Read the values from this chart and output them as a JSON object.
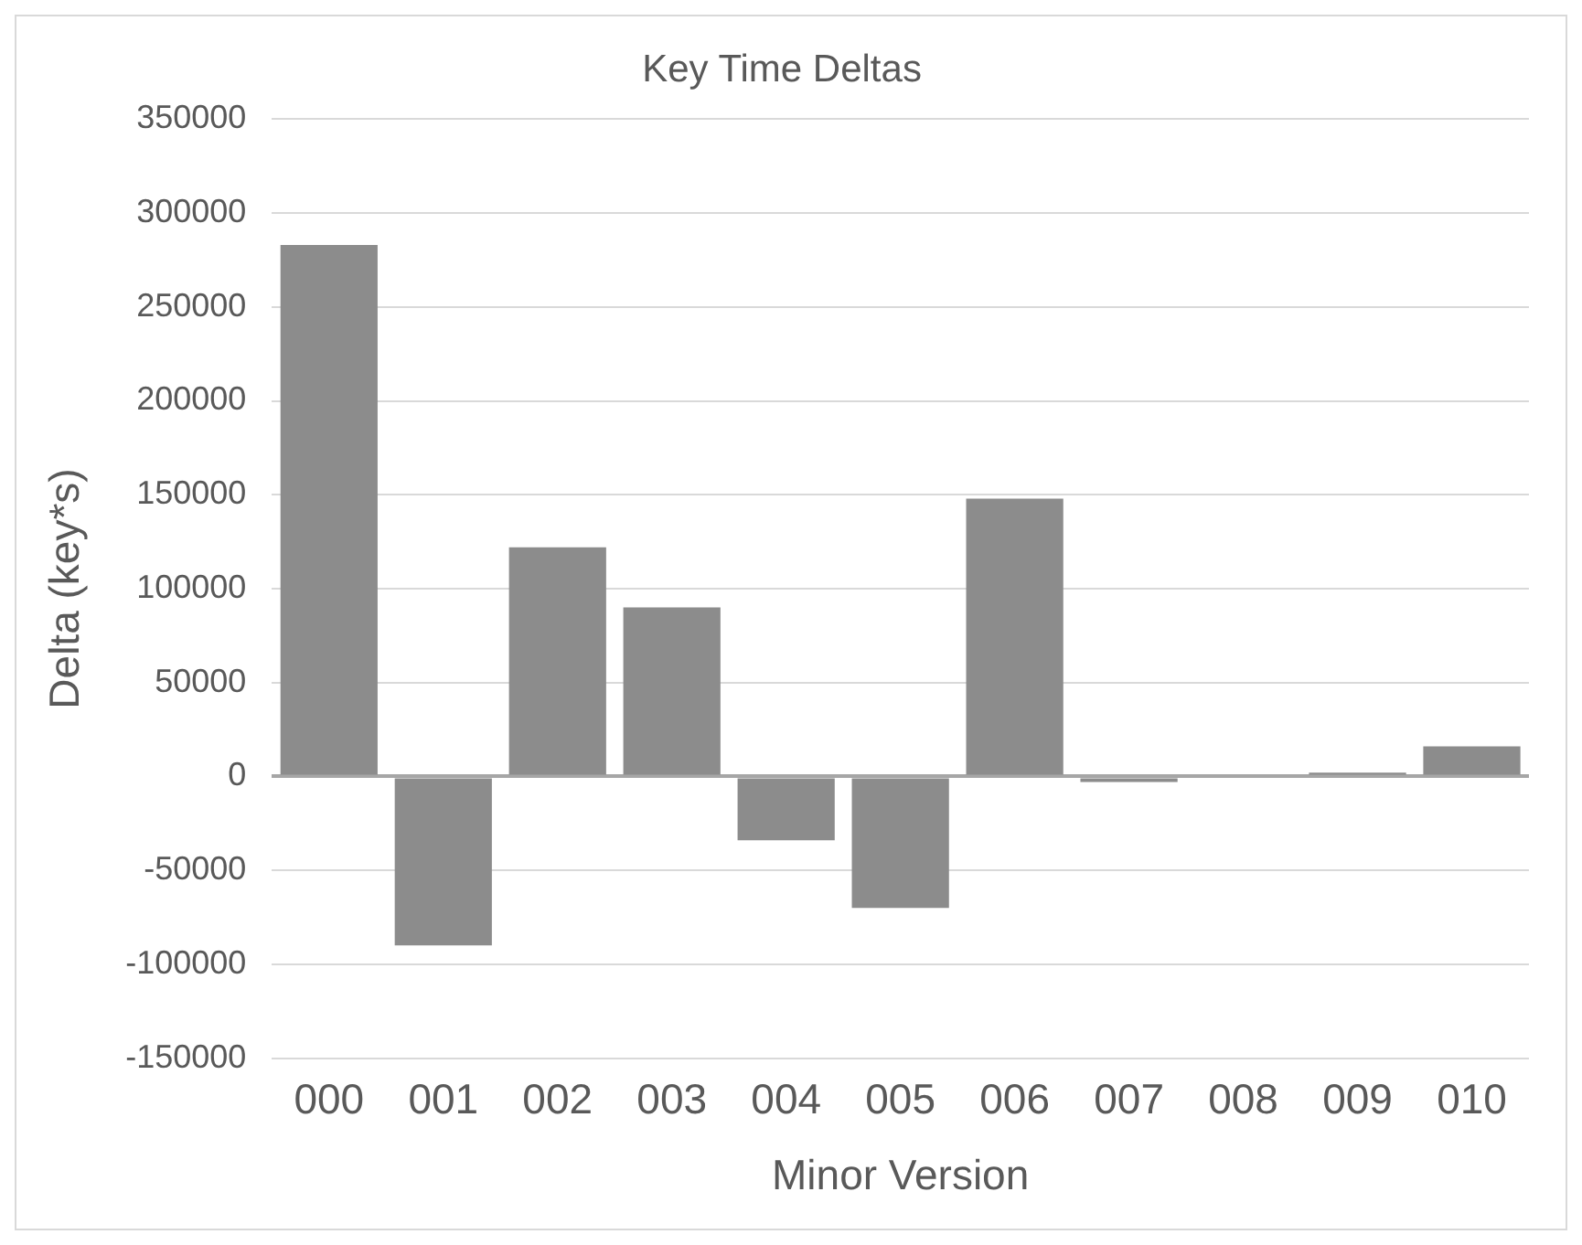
{
  "chart_data": {
    "type": "bar",
    "title": "Key Time Deltas",
    "xlabel": "Minor Version",
    "ylabel": "Delta (key*s)",
    "categories": [
      "000",
      "001",
      "002",
      "003",
      "004",
      "005",
      "006",
      "007",
      "008",
      "009",
      "010"
    ],
    "values": [
      283000,
      -90000,
      122000,
      90000,
      -34000,
      -70000,
      148000,
      -3000,
      1000,
      2000,
      16000
    ],
    "color": "#8c8c8c",
    "ylim": [
      -150000,
      350000
    ],
    "yticks": [
      -150000,
      -100000,
      -50000,
      0,
      50000,
      100000,
      150000,
      200000,
      250000,
      300000,
      350000
    ],
    "grid": "y",
    "legend": false
  }
}
